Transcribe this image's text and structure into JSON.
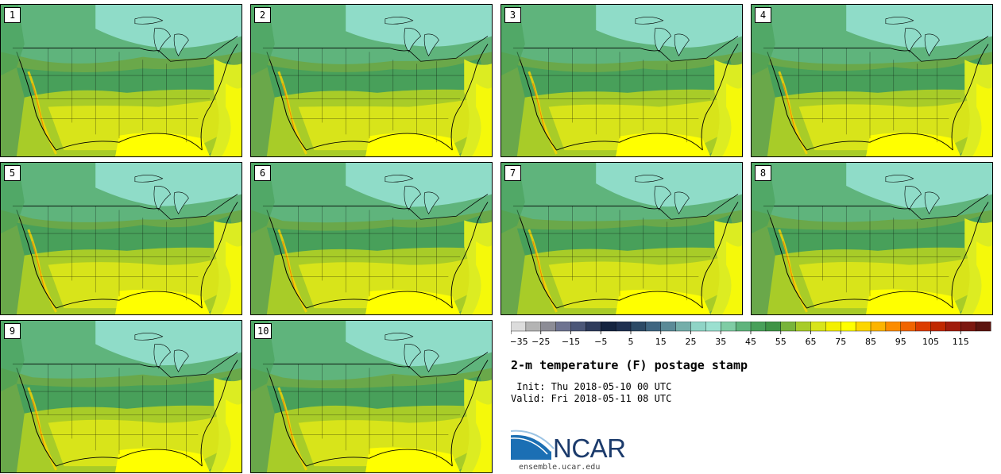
{
  "panels": [
    {
      "label": "1"
    },
    {
      "label": "2"
    },
    {
      "label": "3"
    },
    {
      "label": "4"
    },
    {
      "label": "5"
    },
    {
      "label": "6"
    },
    {
      "label": "7"
    },
    {
      "label": "8"
    },
    {
      "label": "9"
    },
    {
      "label": "10"
    }
  ],
  "title": "2-m temperature (F) postage stamp",
  "init_line": " Init: Thu 2018-05-10 00 UTC",
  "valid_line": "Valid: Fri 2018-05-11 08 UTC",
  "logo": {
    "name": "NCAR",
    "url": "ensemble.ucar.edu",
    "colors": {
      "arc": "#1b6fb4",
      "text": "#1b3a6b"
    }
  },
  "colorbar": {
    "ticks": [
      "−35",
      "−25",
      "−15",
      "−5",
      "5",
      "15",
      "25",
      "35",
      "45",
      "55",
      "65",
      "75",
      "85",
      "95",
      "105",
      "115"
    ],
    "colors": [
      "#dcdcdc",
      "#b4b4b4",
      "#8c8c96",
      "#6e7391",
      "#4c5778",
      "#2e3b5c",
      "#142440",
      "#1e3050",
      "#2c4a66",
      "#3f6681",
      "#5b8a97",
      "#74aeaa",
      "#8fd4c6",
      "#9be0d0",
      "#7fcca4",
      "#5fb47c",
      "#48a05a",
      "#3e9446",
      "#78b43a",
      "#a8cc28",
      "#d8e41a",
      "#f4f000",
      "#ffff00",
      "#fcd600",
      "#fcb400",
      "#fc8c00",
      "#f06400",
      "#dc3c00",
      "#c02800",
      "#a01c0c",
      "#7c1810",
      "#5c1410"
    ]
  },
  "map_palette": {
    "cold": "#8fdcc8",
    "cool": "#5fb47c",
    "mild": "#48a05a",
    "warm": "#a8cc28",
    "hot": "#d8e41a",
    "veryhot": "#ffff00",
    "ocean_west": "#6aa84a",
    "ocean_gulf": "#ffff00",
    "ocean_atlantic": "#dcec22"
  }
}
